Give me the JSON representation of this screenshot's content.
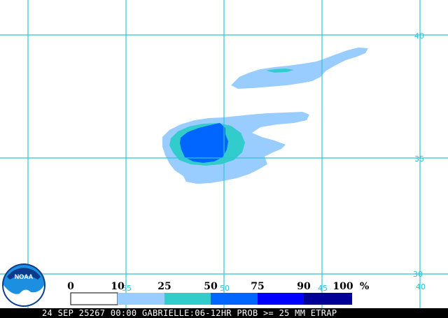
{
  "colors": {
    "grid": "#2ec4d6",
    "background": "#ffffff",
    "prob_10_25": "#99ccff",
    "prob_25_50": "#33cccc",
    "prob_50_75": "#0066ff",
    "prob_75_90": "#0000ff",
    "prob_90_100": "#000099"
  },
  "grid_labels": {
    "lat_40": "40",
    "lat_35": "35",
    "lat_30": "30",
    "lon_55": "55",
    "lon_50": "50",
    "lon_45": "45",
    "lon_40": "40"
  },
  "legend": {
    "thresholds": [
      "0",
      "10",
      "25",
      "50",
      "75",
      "90",
      "100"
    ],
    "unit": "%",
    "bins": [
      {
        "range": "0-10",
        "color": "#ffffff"
      },
      {
        "range": "10-25",
        "color": "#99ccff"
      },
      {
        "range": "25-50",
        "color": "#33cccc"
      },
      {
        "range": "50-75",
        "color": "#0066ff"
      },
      {
        "range": "75-90",
        "color": "#0000ff"
      },
      {
        "range": "90-100",
        "color": "#000099"
      }
    ]
  },
  "logo": {
    "text": "NOAA",
    "icon": "noaa-logo-icon"
  },
  "caption": "24 SEP 25267 00:00 GABRIELLE:06-12HR PROB >= 25 MM ETRAP"
}
